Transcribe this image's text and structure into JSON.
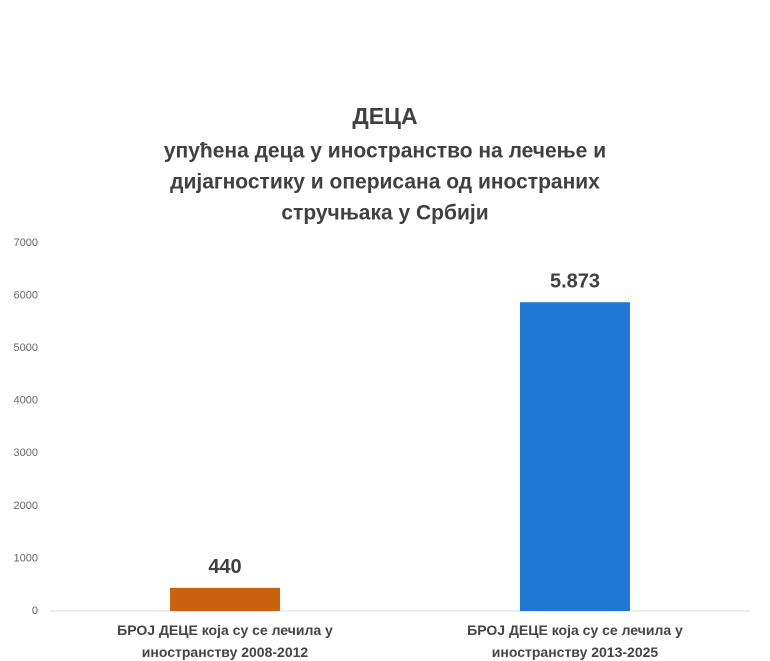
{
  "chart_data": {
    "type": "bar",
    "title": "ДЕЦА",
    "subtitle": [
      "упућена деца у иностранство на лечење и",
      "дијагностику и оперисана од иностраних",
      "стручњака у Србији"
    ],
    "categories": [
      "БРОЈ ДЕЦЕ која су се лечила у иностранству 2008-2012",
      "БРОЈ ДЕЦЕ која су се лечила у иностранству 2013-2025"
    ],
    "values": [
      440,
      5873
    ],
    "value_labels": [
      "440",
      "5.873"
    ],
    "colors": [
      "#c8620f",
      "#1f78d4"
    ],
    "ylim": [
      0,
      7000
    ],
    "yticks": [
      0,
      1000,
      2000,
      3000,
      4000,
      5000,
      6000,
      7000
    ],
    "grid": false
  }
}
